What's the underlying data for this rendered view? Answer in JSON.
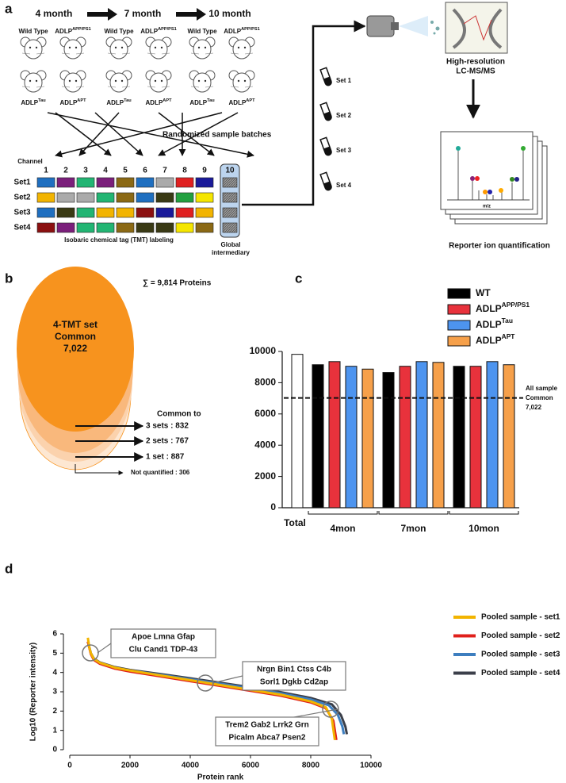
{
  "panel_labels": [
    "a",
    "b",
    "c",
    "d"
  ],
  "panel_a": {
    "timepoints": [
      "4 month",
      "7 month",
      "10 month"
    ],
    "genotypes": [
      {
        "name": "Wild Type"
      },
      {
        "name": "ADLP",
        "sup": "APP/PS1"
      },
      {
        "name": "ADLP",
        "sup": "Tau"
      },
      {
        "name": "ADLP",
        "sup": "APT"
      }
    ],
    "randomization": "Randomized sample batches",
    "channel_title": "Channel",
    "channels": [
      1,
      2,
      3,
      4,
      5,
      6,
      7,
      8,
      9,
      10
    ],
    "sets": [
      {
        "name": "Set1",
        "colors": [
          "#1f6fc0",
          "#7b1f7b",
          "#22b573",
          "#7b1f7b",
          "#8b6914",
          "#1f6fc0",
          "#aaaaaa",
          "#e02020",
          "#1a1a9a"
        ]
      },
      {
        "name": "Set2",
        "colors": [
          "#f2b400",
          "#aaaaaa",
          "#aaaaaa",
          "#22b573",
          "#8b6914",
          "#1f6fc0",
          "#3a3a14",
          "#22a040",
          "#f5e600"
        ]
      },
      {
        "name": "Set3",
        "colors": [
          "#1f6fc0",
          "#3a3a14",
          "#22b573",
          "#f2b400",
          "#f2b400",
          "#8b1010",
          "#1a1a9a",
          "#e02020",
          "#f2b400"
        ]
      },
      {
        "name": "Set4",
        "colors": [
          "#8b1010",
          "#7b1f7b",
          "#22b573",
          "#22b573",
          "#8b6914",
          "#3a3a14",
          "#3a3a14",
          "#f5e600",
          "#8b6914"
        ]
      }
    ],
    "tmt_label": "Isobaric chemical tag (TMT) labeling",
    "global_intermediary": [
      "Global",
      "intermediary"
    ],
    "tubes": [
      "Set 1",
      "Set 2",
      "Set 3",
      "Set 4"
    ],
    "ms_label": [
      "High-resolution",
      "LC-MS/MS"
    ],
    "spectrum_axis": "m/z",
    "quant_label": "Reporter ion quantification"
  },
  "panel_b": {
    "total": "∑ = 9,814 Proteins",
    "core": [
      "4-TMT set",
      "Common",
      "7,022"
    ],
    "common_title": "Common to",
    "levels": [
      "3 sets : 832",
      "2 sets : 767",
      "1 set : 887"
    ],
    "not_quantified": "Not quantified : 306"
  },
  "chart_data": [
    {
      "type": "bar",
      "categories": [
        "4mon",
        "7mon",
        "10mon"
      ],
      "total": {
        "label": "Total",
        "value": 9814,
        "color": "#ffffff"
      },
      "series": [
        {
          "name": "WT",
          "color": "#000000",
          "values": [
            9150,
            8650,
            9050
          ]
        },
        {
          "name": "ADLP",
          "sup": "APP/PS1",
          "color": "#e8323c",
          "values": [
            9350,
            9050,
            9050
          ]
        },
        {
          "name": "ADLP",
          "sup": "Tau",
          "color": "#4d94ef",
          "values": [
            9050,
            9350,
            9350
          ]
        },
        {
          "name": "ADLP",
          "sup": "APT",
          "color": "#f6a04a",
          "values": [
            8870,
            9300,
            9150
          ]
        }
      ],
      "ylim": [
        0,
        10000
      ],
      "yticks": [
        0,
        2000,
        4000,
        6000,
        8000,
        10000
      ],
      "reference": {
        "value": 7022,
        "label": [
          "All sample",
          "Common",
          "7,022"
        ]
      },
      "legend_position": "top-right"
    },
    {
      "type": "line",
      "xlabel": "Protein rank",
      "ylabel": "Log10 (Reporter intensity)",
      "xlim": [
        0,
        10000
      ],
      "xticks": [
        0,
        2000,
        4000,
        6000,
        8000,
        10000
      ],
      "ylim": [
        0,
        6
      ],
      "yticks": [
        0,
        1,
        2,
        3,
        4,
        5,
        6
      ],
      "legend_position": "right",
      "series": [
        {
          "name": "Pooled sample - set1",
          "color": "#f2b400",
          "x": [
            600,
            650,
            700,
            800,
            1000,
            1500,
            2000,
            3000,
            4000,
            5000,
            6000,
            7000,
            8000,
            8500,
            8700,
            8800
          ],
          "values": [
            5.8,
            5.3,
            5.0,
            4.7,
            4.5,
            4.25,
            4.1,
            3.85,
            3.6,
            3.35,
            3.1,
            2.85,
            2.5,
            2.2,
            1.6,
            0.5
          ]
        },
        {
          "name": "Pooled sample - set2",
          "color": "#e0201b",
          "x": [
            600,
            700,
            800,
            1000,
            1500,
            2000,
            3000,
            4000,
            5000,
            6000,
            7000,
            8000,
            8500,
            8750,
            8850
          ],
          "values": [
            5.6,
            4.95,
            4.65,
            4.45,
            4.2,
            4.05,
            3.8,
            3.55,
            3.3,
            3.05,
            2.8,
            2.45,
            2.15,
            1.5,
            0.5
          ]
        },
        {
          "name": "Pooled sample - set3",
          "color": "#3d7ebf",
          "x": [
            600,
            700,
            800,
            1000,
            1500,
            2000,
            3000,
            4000,
            5000,
            6000,
            7000,
            8000,
            8600,
            8900,
            9050,
            9100
          ],
          "values": [
            5.6,
            5.0,
            4.7,
            4.5,
            4.25,
            4.1,
            3.88,
            3.65,
            3.42,
            3.18,
            2.92,
            2.6,
            2.3,
            1.8,
            1.2,
            0.8
          ]
        },
        {
          "name": "Pooled sample - set4",
          "color": "#3b3f4a",
          "x": [
            600,
            700,
            800,
            1000,
            1500,
            2000,
            3000,
            4000,
            5000,
            6000,
            7000,
            8000,
            8700,
            9000,
            9150,
            9200
          ],
          "values": [
            5.6,
            5.0,
            4.72,
            4.52,
            4.28,
            4.13,
            3.92,
            3.7,
            3.47,
            3.23,
            2.98,
            2.68,
            2.35,
            1.8,
            1.2,
            0.8
          ]
        }
      ],
      "annotations": [
        {
          "lines": [
            "Apoe   Lmna   Gfap",
            "Clu   Cand1   TDP-43"
          ]
        },
        {
          "lines": [
            "Nrgn   Bin1   Ctss   C4b",
            "Sorl1   Dgkb   Cd2ap"
          ]
        },
        {
          "lines": [
            "Trem2   Gab2   Lrrk2   Grn",
            "Picalm   Abca7   Psen2"
          ]
        }
      ]
    }
  ]
}
